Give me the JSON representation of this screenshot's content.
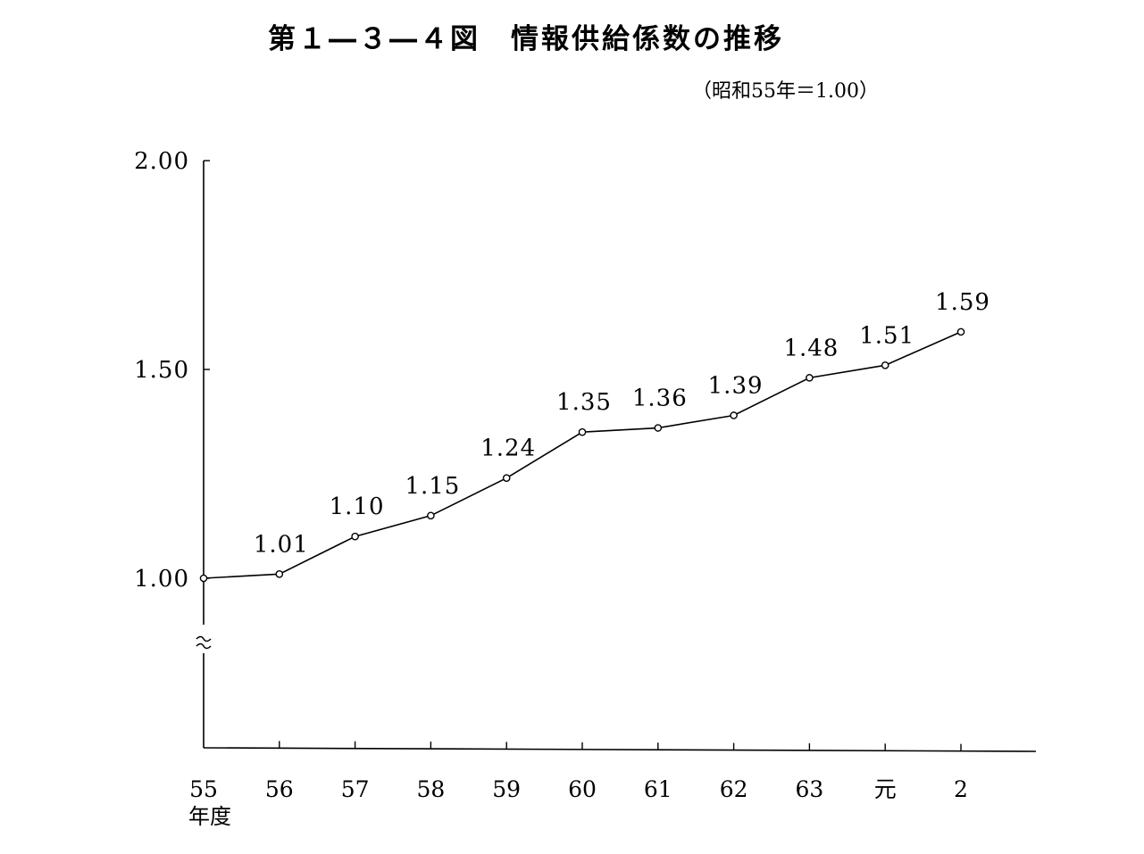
{
  "chart_data": {
    "type": "line",
    "title": "第１―３―４図　情報供給係数の推移",
    "subtitle": "（昭和55年＝1.00）",
    "xlabel": "年度",
    "ylabel": "",
    "categories": [
      "55",
      "56",
      "57",
      "58",
      "59",
      "60",
      "61",
      "62",
      "63",
      "元",
      "2"
    ],
    "series": [
      {
        "values": [
          1.0,
          1.01,
          1.1,
          1.15,
          1.24,
          1.35,
          1.36,
          1.39,
          1.48,
          1.51,
          1.59
        ],
        "labels": [
          "",
          "1.01",
          "1.10",
          "1.15",
          "1.24",
          "1.35",
          "1.36",
          "1.39",
          "1.48",
          "1.51",
          "1.59"
        ]
      }
    ],
    "y_ticks": [
      "1.00",
      "1.50",
      "2.00"
    ],
    "ylim": [
      1.0,
      2.0
    ],
    "axis_break": true,
    "grid": false,
    "line_color": "#000000",
    "marker": "hollow-circle"
  }
}
